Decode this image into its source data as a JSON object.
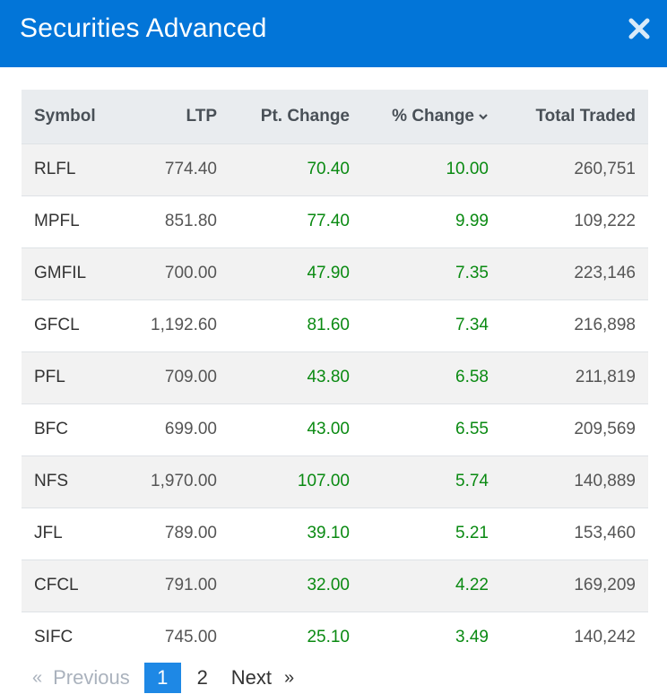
{
  "header": {
    "title": "Securities Advanced",
    "close_icon": "close-icon"
  },
  "table": {
    "columns": [
      "Symbol",
      "LTP",
      "Pt. Change",
      "% Change",
      "Total Traded"
    ],
    "rows": [
      {
        "symbol": "RLFL",
        "ltp": "774.40",
        "pt_change": "70.40",
        "pct_change": "10.00",
        "total_traded": "260,751"
      },
      {
        "symbol": "MPFL",
        "ltp": "851.80",
        "pt_change": "77.40",
        "pct_change": "9.99",
        "total_traded": "109,222"
      },
      {
        "symbol": "GMFIL",
        "ltp": "700.00",
        "pt_change": "47.90",
        "pct_change": "7.35",
        "total_traded": "223,146"
      },
      {
        "symbol": "GFCL",
        "ltp": "1,192.60",
        "pt_change": "81.60",
        "pct_change": "7.34",
        "total_traded": "216,898"
      },
      {
        "symbol": "PFL",
        "ltp": "709.00",
        "pt_change": "43.80",
        "pct_change": "6.58",
        "total_traded": "211,819"
      },
      {
        "symbol": "BFC",
        "ltp": "699.00",
        "pt_change": "43.00",
        "pct_change": "6.55",
        "total_traded": "209,569"
      },
      {
        "symbol": "NFS",
        "ltp": "1,970.00",
        "pt_change": "107.00",
        "pct_change": "5.74",
        "total_traded": "140,889"
      },
      {
        "symbol": "JFL",
        "ltp": "789.00",
        "pt_change": "39.10",
        "pct_change": "5.21",
        "total_traded": "153,460"
      },
      {
        "symbol": "CFCL",
        "ltp": "791.00",
        "pt_change": "32.00",
        "pct_change": "4.22",
        "total_traded": "169,209"
      },
      {
        "symbol": "SIFC",
        "ltp": "745.00",
        "pt_change": "25.10",
        "pct_change": "3.49",
        "total_traded": "140,242"
      }
    ]
  },
  "pagination": {
    "prev_arrow": "«",
    "previous": "Previous",
    "page1": "1",
    "page2": "2",
    "next": "Next",
    "next_arrow": "»"
  },
  "colors": {
    "header": "#0275d8",
    "positive": "#0a8a12",
    "active_page": "#1e88e5"
  }
}
